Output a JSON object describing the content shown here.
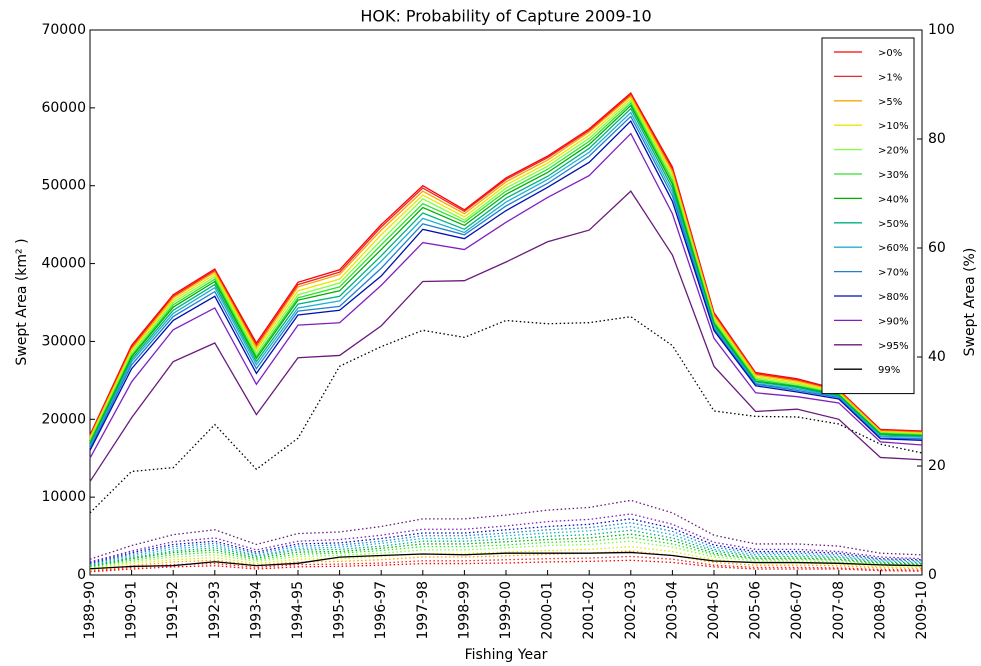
{
  "chart_data": {
    "type": "line",
    "title": "HOK: Probability of Capture 2009-10",
    "xlabel": "Fishing Year",
    "ylabel": "Swept Area (km² )",
    "y2label": "Swept Area (%)",
    "categories": [
      "1989-90",
      "1990-91",
      "1991-92",
      "1992-93",
      "1993-94",
      "1994-95",
      "1995-96",
      "1996-97",
      "1997-98",
      "1998-99",
      "1999-00",
      "2000-01",
      "2001-02",
      "2002-03",
      "2003-04",
      "2004-05",
      "2005-06",
      "2006-07",
      "2007-08",
      "2008-09",
      "2009-10"
    ],
    "ylim": [
      0,
      70000
    ],
    "yticks": [
      0,
      10000,
      20000,
      30000,
      40000,
      50000,
      60000,
      70000
    ],
    "y2lim": [
      0,
      100
    ],
    "y2ticks": [
      0,
      20,
      40,
      60,
      80,
      100
    ],
    "legend": "upper right",
    "series": [
      {
        "name": ">0%",
        "color": "#ff0000",
        "values": [
          18000,
          29500,
          36000,
          39300,
          29800,
          37600,
          39200,
          45000,
          50000,
          46900,
          51000,
          53800,
          57300,
          61900,
          52400,
          33700,
          26000,
          25200,
          23800,
          18700,
          18500
        ]
      },
      {
        "name": ">1%",
        "color": "#e82828",
        "values": [
          17850,
          29250,
          35800,
          39100,
          29500,
          37300,
          38900,
          44700,
          49700,
          46700,
          50800,
          53600,
          57100,
          61700,
          52100,
          33500,
          25850,
          25050,
          23700,
          18600,
          18400
        ]
      },
      {
        "name": ">5%",
        "color": "#ffa500",
        "values": [
          17700,
          29000,
          35600,
          38900,
          29200,
          37000,
          38600,
          44300,
          49300,
          46400,
          50500,
          53300,
          56900,
          61500,
          51800,
          33300,
          25700,
          24900,
          23600,
          18500,
          18300
        ]
      },
      {
        "name": ">10%",
        "color": "#e8e800",
        "values": [
          17500,
          28800,
          35300,
          38600,
          28900,
          36500,
          38000,
          43700,
          48800,
          46000,
          50100,
          52900,
          56500,
          61200,
          51400,
          33000,
          25500,
          24700,
          23400,
          18400,
          18200
        ]
      },
      {
        "name": ">20%",
        "color": "#80ff40",
        "values": [
          17300,
          28500,
          35000,
          38300,
          28500,
          36000,
          37500,
          43000,
          48300,
          45600,
          49700,
          52500,
          56100,
          60900,
          51000,
          32800,
          25300,
          24500,
          23300,
          18300,
          18100
        ]
      },
      {
        "name": ">30%",
        "color": "#30e030",
        "values": [
          17100,
          28200,
          34700,
          38000,
          28100,
          35600,
          37000,
          42400,
          47700,
          45300,
          49300,
          52100,
          55700,
          60600,
          50600,
          32500,
          25100,
          24300,
          23200,
          18200,
          18000
        ]
      },
      {
        "name": ">40%",
        "color": "#00b000",
        "values": [
          16900,
          28000,
          34400,
          37700,
          27800,
          35300,
          36500,
          41800,
          47200,
          44900,
          48900,
          51700,
          55300,
          60300,
          50200,
          32300,
          24900,
          24200,
          23100,
          18100,
          17900
        ]
      },
      {
        "name": ">50%",
        "color": "#00b080",
        "values": [
          16700,
          27700,
          34000,
          37300,
          27400,
          34800,
          35800,
          41000,
          46500,
          44400,
          48400,
          51200,
          54800,
          59900,
          49700,
          32000,
          24800,
          24100,
          23000,
          18000,
          17800
        ]
      },
      {
        "name": ">60%",
        "color": "#20b0d0",
        "values": [
          16500,
          27400,
          33600,
          36900,
          27000,
          34300,
          35200,
          40300,
          45800,
          44000,
          47900,
          50800,
          54300,
          59400,
          49200,
          31800,
          24600,
          23900,
          22900,
          17800,
          17700
        ]
      },
      {
        "name": ">70%",
        "color": "#2080d0",
        "values": [
          16300,
          27000,
          33200,
          36400,
          26500,
          33900,
          34500,
          39400,
          45100,
          43700,
          47400,
          50300,
          53800,
          58900,
          48700,
          31600,
          24500,
          23700,
          22800,
          17600,
          17500
        ]
      },
      {
        "name": ">80%",
        "color": "#0010b0",
        "values": [
          16000,
          26500,
          32700,
          35800,
          25900,
          33400,
          34000,
          38400,
          44400,
          43200,
          46800,
          49800,
          53000,
          58300,
          48000,
          31400,
          24300,
          23500,
          22600,
          17500,
          17300
        ]
      },
      {
        "name": ">90%",
        "color": "#8020c0",
        "values": [
          15000,
          24800,
          31500,
          34300,
          24500,
          32100,
          32400,
          37200,
          42700,
          41800,
          45300,
          48500,
          51300,
          56700,
          46400,
          30400,
          23400,
          22900,
          22100,
          17100,
          16700
        ]
      },
      {
        "name": ">95%",
        "color": "#6a1a7a",
        "values": [
          12000,
          20200,
          27400,
          29800,
          20600,
          27900,
          28200,
          32000,
          37700,
          37800,
          40200,
          42800,
          44300,
          49300,
          41100,
          26800,
          21000,
          21300,
          20000,
          15100,
          14800
        ]
      },
      {
        "name": "99%",
        "color": "#000000",
        "values": [
          800,
          1100,
          1200,
          1700,
          1200,
          1500,
          2300,
          2500,
          2700,
          2600,
          2800,
          2800,
          2800,
          2900,
          2500,
          1800,
          1600,
          1600,
          1500,
          1300,
          1200
        ]
      }
    ],
    "y2_series": [
      {
        "color": "#ff0000",
        "axis": "y2",
        "values": [
          0.6,
          1.1,
          1.5,
          1.7,
          1.1,
          1.5,
          1.6,
          1.8,
          2.1,
          2.1,
          2.2,
          2.4,
          2.5,
          2.7,
          2.3,
          1.5,
          1.1,
          1.1,
          1.1,
          0.8,
          0.7
        ]
      },
      {
        "color": "#e82828",
        "axis": "y2",
        "values": [
          0.7,
          1.4,
          1.9,
          2.1,
          1.4,
          1.9,
          2.0,
          2.2,
          2.6,
          2.6,
          2.8,
          3.0,
          3.1,
          3.4,
          2.9,
          1.8,
          1.4,
          1.4,
          1.3,
          1.0,
          0.9
        ]
      },
      {
        "color": "#ffa500",
        "axis": "y2",
        "values": [
          0.9,
          1.7,
          2.4,
          2.7,
          1.8,
          2.4,
          2.5,
          2.8,
          3.3,
          3.3,
          3.5,
          3.8,
          4.0,
          4.4,
          3.6,
          2.3,
          1.8,
          1.8,
          1.7,
          1.3,
          1.2
        ]
      },
      {
        "color": "#e8e800",
        "axis": "y2",
        "values": [
          1.1,
          2.1,
          2.8,
          3.2,
          2.1,
          2.9,
          3.0,
          3.4,
          3.9,
          3.9,
          4.2,
          4.5,
          4.7,
          5.2,
          4.3,
          2.8,
          2.2,
          2.2,
          2.0,
          1.5,
          1.4
        ]
      },
      {
        "color": "#80ff40",
        "axis": "y2",
        "values": [
          1.3,
          2.4,
          3.3,
          3.7,
          2.5,
          3.4,
          3.6,
          4.0,
          4.6,
          4.6,
          5.0,
          5.4,
          5.6,
          6.2,
          5.1,
          3.3,
          2.6,
          2.6,
          2.4,
          1.8,
          1.7
        ]
      },
      {
        "color": "#30e030",
        "axis": "y2",
        "values": [
          1.5,
          2.7,
          3.7,
          4.2,
          2.8,
          3.8,
          4.0,
          4.5,
          5.2,
          5.2,
          5.5,
          6.0,
          6.2,
          6.9,
          5.7,
          3.7,
          2.9,
          2.9,
          2.7,
          2.0,
          1.9
        ]
      },
      {
        "color": "#00b000",
        "axis": "y2",
        "values": [
          1.6,
          3.0,
          4.1,
          4.6,
          3.1,
          4.2,
          4.3,
          4.9,
          5.7,
          5.7,
          6.1,
          6.5,
          6.8,
          7.5,
          6.3,
          4.0,
          3.1,
          3.1,
          2.9,
          2.2,
          2.0
        ]
      },
      {
        "color": "#00b080",
        "axis": "y2",
        "values": [
          1.7,
          3.2,
          4.4,
          5.0,
          3.4,
          4.6,
          4.7,
          5.3,
          6.2,
          6.2,
          6.6,
          7.1,
          7.4,
          8.2,
          6.8,
          4.4,
          3.4,
          3.4,
          3.2,
          2.4,
          2.2
        ]
      },
      {
        "color": "#20b0d0",
        "axis": "y2",
        "values": [
          1.9,
          3.5,
          4.8,
          5.4,
          3.6,
          4.9,
          5.1,
          5.8,
          6.7,
          6.7,
          7.2,
          7.7,
          8.1,
          8.9,
          7.4,
          4.7,
          3.7,
          3.7,
          3.4,
          2.6,
          2.4
        ]
      },
      {
        "color": "#2080d0",
        "axis": "y2",
        "values": [
          2.0,
          3.8,
          5.2,
          5.8,
          3.9,
          5.3,
          5.5,
          6.2,
          7.2,
          7.2,
          7.7,
          8.3,
          8.7,
          9.6,
          8.0,
          5.1,
          4.0,
          4.0,
          3.7,
          2.8,
          2.6
        ]
      },
      {
        "color": "#0010b0",
        "axis": "y2",
        "values": [
          2.2,
          4.1,
          5.6,
          6.2,
          4.2,
          5.7,
          5.9,
          6.7,
          7.7,
          7.7,
          8.3,
          8.9,
          9.3,
          10.3,
          8.6,
          5.5,
          4.3,
          4.3,
          4.0,
          3.0,
          2.8
        ]
      },
      {
        "color": "#8020c0",
        "axis": "y2",
        "values": [
          2.4,
          4.4,
          6.1,
          6.8,
          4.6,
          6.2,
          6.5,
          7.3,
          8.4,
          8.4,
          9.0,
          9.8,
          10.2,
          11.2,
          9.3,
          6.0,
          4.7,
          4.7,
          4.3,
          3.3,
          3.0
        ]
      },
      {
        "color": "#6a1a7a",
        "axis": "y2",
        "values": [
          2.9,
          5.4,
          7.4,
          8.3,
          5.6,
          7.6,
          7.9,
          8.9,
          10.3,
          10.3,
          11.0,
          11.9,
          12.4,
          13.7,
          11.4,
          7.3,
          5.7,
          5.7,
          5.3,
          4.0,
          3.7
        ]
      },
      {
        "color": "#000000",
        "axis": "y2",
        "values": [
          11.4,
          19.0,
          19.7,
          27.6,
          19.4,
          25.1,
          38.3,
          41.9,
          44.9,
          43.6,
          46.7,
          46.1,
          46.3,
          47.4,
          42.1,
          30.1,
          29.1,
          29.0,
          27.7,
          24.0,
          22.4
        ]
      }
    ]
  }
}
